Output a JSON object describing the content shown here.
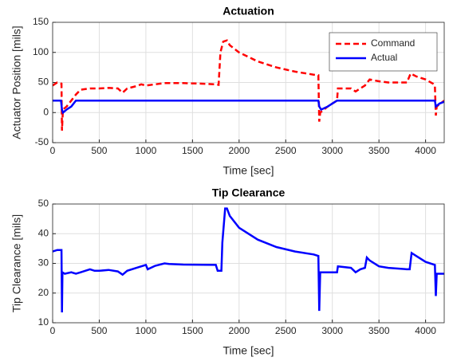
{
  "chart_data": [
    {
      "type": "line",
      "title": "Actuation",
      "xlabel": "Time [sec]",
      "ylabel": "Actuator Position [mils]",
      "xlim": [
        0,
        4200
      ],
      "xticks": [
        0,
        500,
        1000,
        1500,
        2000,
        2500,
        3000,
        3500,
        4000
      ],
      "ylim": [
        -50,
        150
      ],
      "yticks": [
        -50,
        0,
        50,
        100,
        150
      ],
      "grid": true,
      "legend": "northeast",
      "series": [
        {
          "name": "Command",
          "color": "#ff0000",
          "style": "dashed",
          "x": [
            0,
            50,
            95,
            100,
            110,
            150,
            200,
            250,
            300,
            400,
            500,
            600,
            700,
            750,
            800,
            900,
            950,
            1000,
            1100,
            1200,
            1400,
            1600,
            1750,
            1780,
            1800,
            1830,
            1870,
            1900,
            2000,
            2200,
            2400,
            2600,
            2800,
            2850,
            2860,
            2870,
            2950,
            3000,
            3050,
            3060,
            3100,
            3200,
            3250,
            3300,
            3350,
            3400,
            3500,
            3600,
            3700,
            3800,
            3840,
            3900,
            4000,
            4080,
            4100,
            4110,
            4120,
            4200
          ],
          "values": [
            45,
            50,
            48,
            -30,
            5,
            10,
            20,
            30,
            38,
            40,
            40,
            41,
            40,
            33,
            40,
            44,
            47,
            45,
            47,
            49,
            49,
            48,
            47,
            46,
            100,
            118,
            120,
            112,
            100,
            85,
            75,
            68,
            63,
            62,
            -15,
            0,
            10,
            15,
            20,
            40,
            40,
            40,
            35,
            40,
            45,
            55,
            52,
            50,
            50,
            50,
            65,
            60,
            55,
            48,
            45,
            -5,
            10,
            20
          ]
        },
        {
          "name": "Actual",
          "color": "#0000ff",
          "style": "solid",
          "x": [
            0,
            90,
            100,
            110,
            150,
            200,
            250,
            2850,
            2860,
            2880,
            2950,
            3000,
            3050,
            4100,
            4110,
            4150,
            4200
          ],
          "values": [
            20,
            20,
            5,
            0,
            5,
            10,
            20,
            20,
            10,
            5,
            10,
            15,
            20,
            20,
            10,
            15,
            18
          ]
        }
      ]
    },
    {
      "type": "line",
      "title": "Tip Clearance",
      "xlabel": "Time [sec]",
      "ylabel": "Tip Clearance [mils]",
      "xlim": [
        0,
        4200
      ],
      "xticks": [
        0,
        500,
        1000,
        1500,
        2000,
        2500,
        3000,
        3500,
        4000
      ],
      "ylim": [
        10,
        50
      ],
      "yticks": [
        10,
        20,
        30,
        40,
        50
      ],
      "grid": true,
      "series": [
        {
          "color": "#0000ff",
          "style": "solid",
          "x": [
            0,
            50,
            95,
            100,
            105,
            130,
            200,
            250,
            300,
            350,
            400,
            450,
            500,
            600,
            700,
            750,
            800,
            900,
            1000,
            1020,
            1100,
            1200,
            1250,
            1400,
            1750,
            1770,
            1810,
            1820,
            1850,
            1870,
            1900,
            2000,
            2200,
            2400,
            2600,
            2800,
            2850,
            2860,
            2870,
            3000,
            3050,
            3060,
            3200,
            3250,
            3300,
            3350,
            3370,
            3400,
            3500,
            3600,
            3800,
            3830,
            3850,
            3900,
            4000,
            4100,
            4110,
            4120,
            4200
          ],
          "values": [
            34,
            34.5,
            34.5,
            13.5,
            27,
            26.5,
            27,
            26.5,
            27,
            27.5,
            28,
            27.5,
            27.5,
            27.8,
            27.3,
            26.2,
            27.5,
            28.5,
            29.5,
            28,
            29.2,
            30,
            29.8,
            29.6,
            29.5,
            27.5,
            27.5,
            37,
            48.5,
            48.5,
            46,
            42,
            38,
            35.5,
            34,
            33,
            32.5,
            14,
            27,
            27,
            27,
            29,
            28.5,
            27,
            28,
            28.5,
            32,
            31,
            29,
            28.5,
            28,
            28,
            33.5,
            32.5,
            30.5,
            29.5,
            19,
            26.5,
            26.5
          ]
        }
      ]
    }
  ]
}
